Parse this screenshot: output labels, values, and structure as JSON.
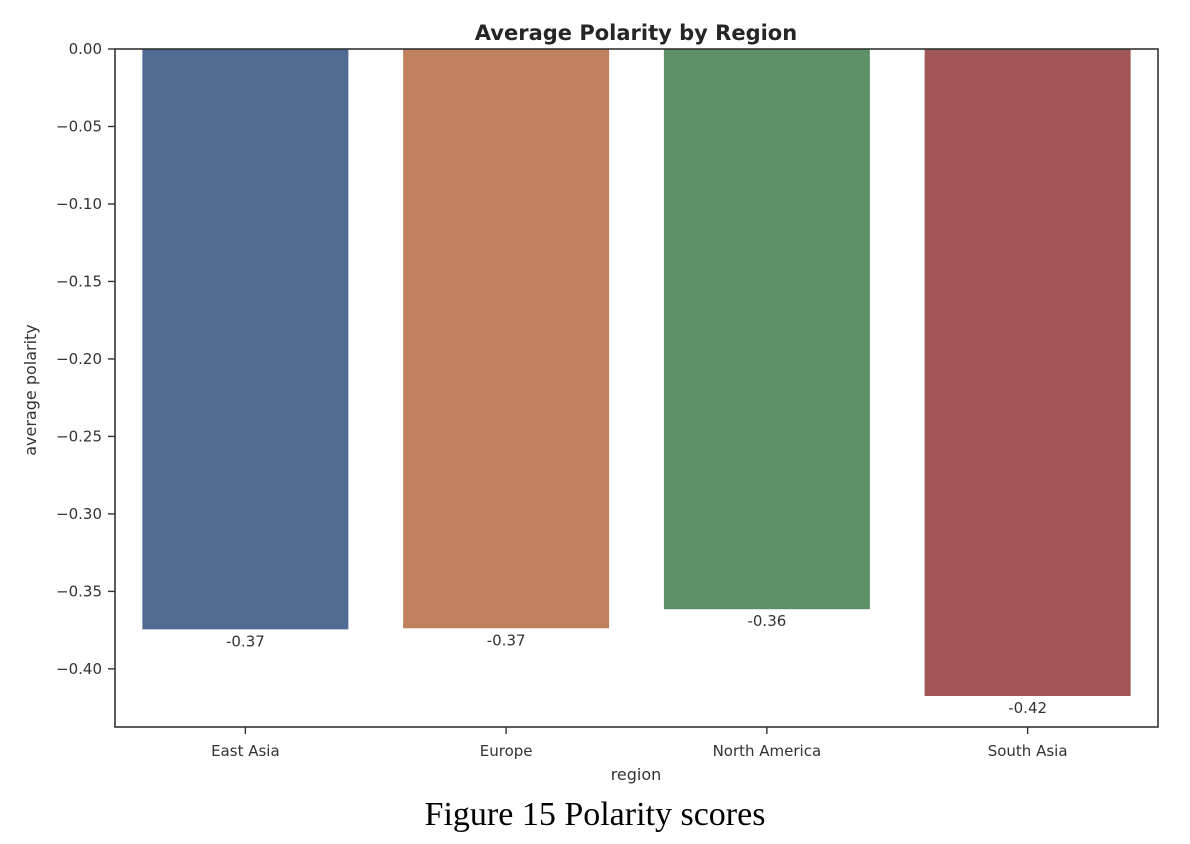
{
  "caption": "Figure 15 Polarity scores",
  "colors": {
    "axis": "#333333",
    "bars": [
      "#516a94",
      "#bf805b",
      "#5d9165",
      "#a25757"
    ]
  },
  "chart_data": {
    "type": "bar",
    "title": "Average Polarity by Region",
    "xlabel": "region",
    "ylabel": "average polarity",
    "categories": [
      "East Asia",
      "Europe",
      "North America",
      "South Asia"
    ],
    "values": [
      -0.3745,
      -0.3738,
      -0.3615,
      -0.4175
    ],
    "data_labels": [
      "-0.37",
      "-0.37",
      "-0.36",
      "-0.42"
    ],
    "ylim": [
      -0.4375,
      0.0
    ],
    "yticks": [
      0.0,
      -0.05,
      -0.1,
      -0.15,
      -0.2,
      -0.25,
      -0.3,
      -0.35,
      -0.4
    ],
    "ytick_labels": [
      "0.00",
      "−0.05",
      "−0.10",
      "−0.15",
      "−0.20",
      "−0.25",
      "−0.30",
      "−0.35",
      "−0.40"
    ],
    "grid": false,
    "legend": "none"
  }
}
